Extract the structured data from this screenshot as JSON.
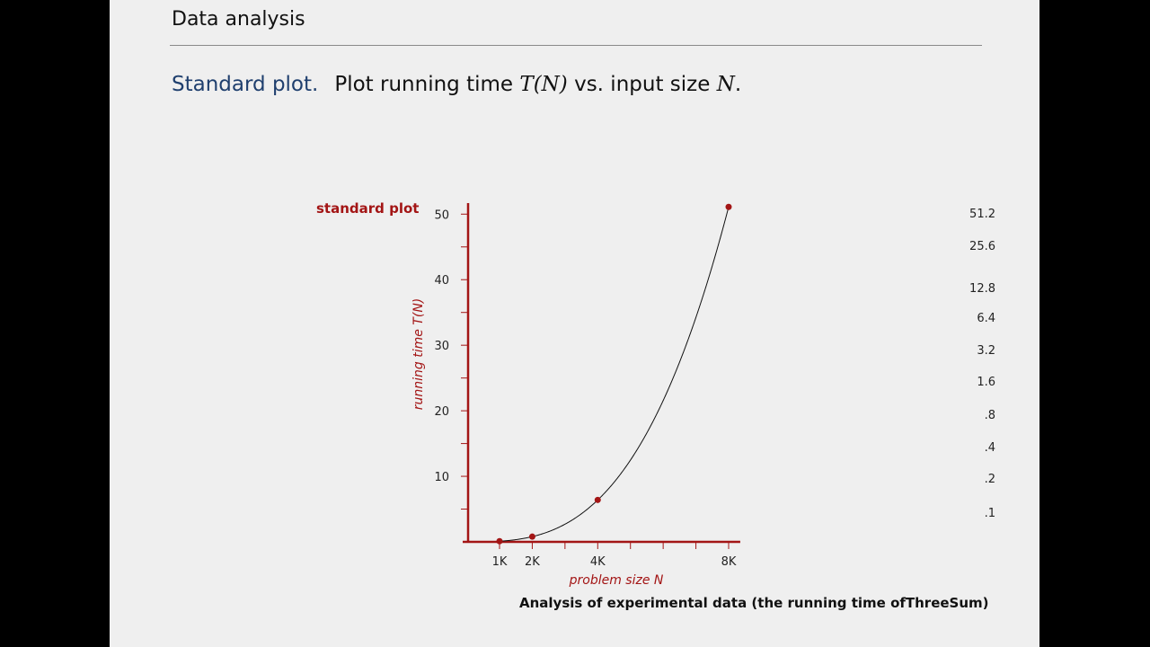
{
  "slide": {
    "title": "Data analysis",
    "subtitle_lead": "Standard plot.",
    "subtitle_text": "Plot running time ",
    "subtitle_var1": "T(N)",
    "subtitle_mid": " vs. input size ",
    "subtitle_var2": "N",
    "subtitle_end": ".",
    "caption": "Analysis of experimental data (the running time ofThreeSum)"
  },
  "colors": {
    "axis": "#a31515",
    "point": "#a31515",
    "curve": "#111111",
    "subtitle_lead": "#1f3f6e"
  },
  "chart_data": {
    "type": "line",
    "title": "standard plot",
    "xlabel": "problem size N",
    "ylabel": "running time T(N)",
    "x_tick_labels": [
      "1K",
      "2K",
      "4K",
      "8K"
    ],
    "x_tick_values": [
      1000,
      2000,
      4000,
      8000
    ],
    "x_minor_ticks": [
      3000,
      5000,
      6000,
      7000
    ],
    "y_tick_labels": [
      "10",
      "20",
      "30",
      "40",
      "50"
    ],
    "y_tick_values": [
      10,
      20,
      30,
      40,
      50
    ],
    "y_minor_ticks": [
      5,
      15,
      25,
      35,
      45
    ],
    "xlim": [
      0,
      8300
    ],
    "ylim": [
      0,
      51
    ],
    "grid": false,
    "series": [
      {
        "x": [
          1000,
          2000,
          4000,
          8000
        ],
        "y": [
          0.1,
          0.8,
          6.4,
          51.1
        ]
      }
    ],
    "curve_model": "cubic",
    "right_axis_labels": [
      "51.2",
      "25.6",
      "12.8",
      "6.4",
      "3.2",
      "1.6",
      ".8",
      ".4",
      ".2",
      ".1"
    ]
  }
}
